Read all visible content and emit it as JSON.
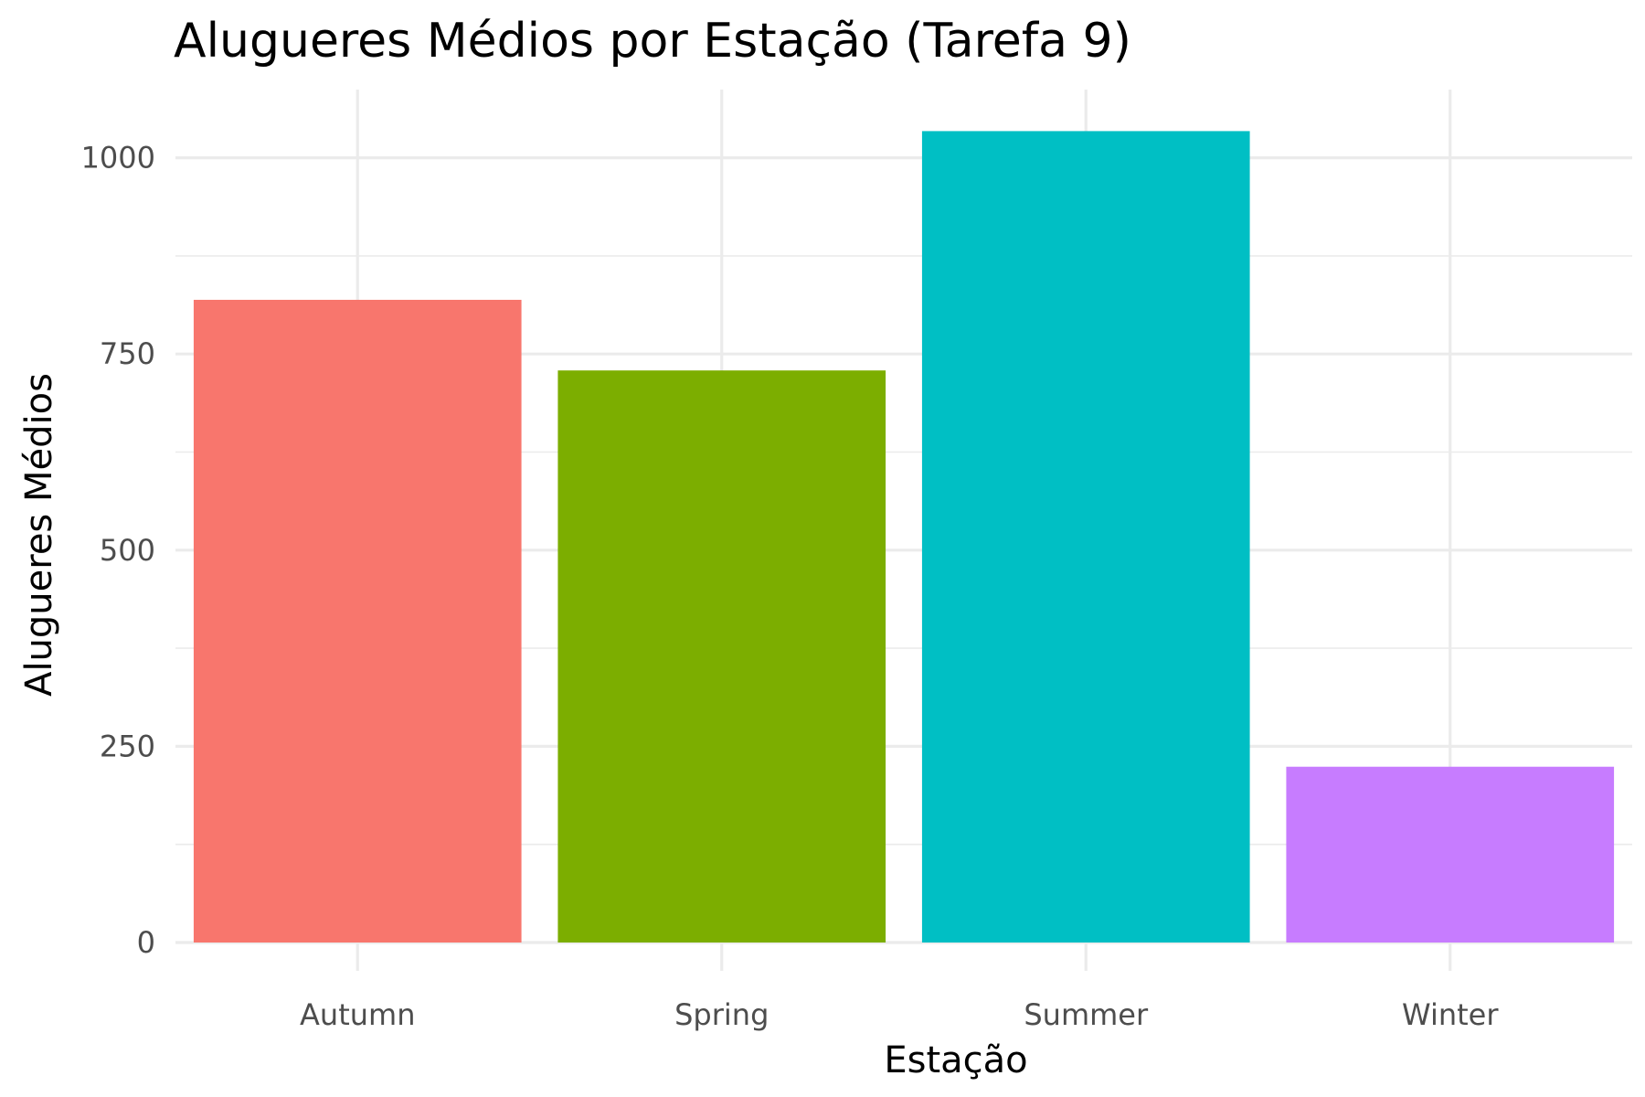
{
  "chart_data": {
    "type": "bar",
    "title": "Alugueres Médios por Estação (Tarefa 9)",
    "xlabel": "Estação",
    "ylabel": "Alugueres Médios",
    "categories": [
      "Autumn",
      "Spring",
      "Summer",
      "Winter"
    ],
    "values": [
      819,
      729,
      1034,
      224
    ],
    "colors": [
      "#F8766D",
      "#7CAE00",
      "#00BFC4",
      "#C77CFF"
    ],
    "ylim": [
      0,
      1035
    ],
    "yticks": [
      0,
      250,
      500,
      750,
      1000
    ],
    "ytick_labels": [
      "0",
      "250",
      "500",
      "750",
      "1000"
    ],
    "grid": true,
    "legend": "none"
  }
}
